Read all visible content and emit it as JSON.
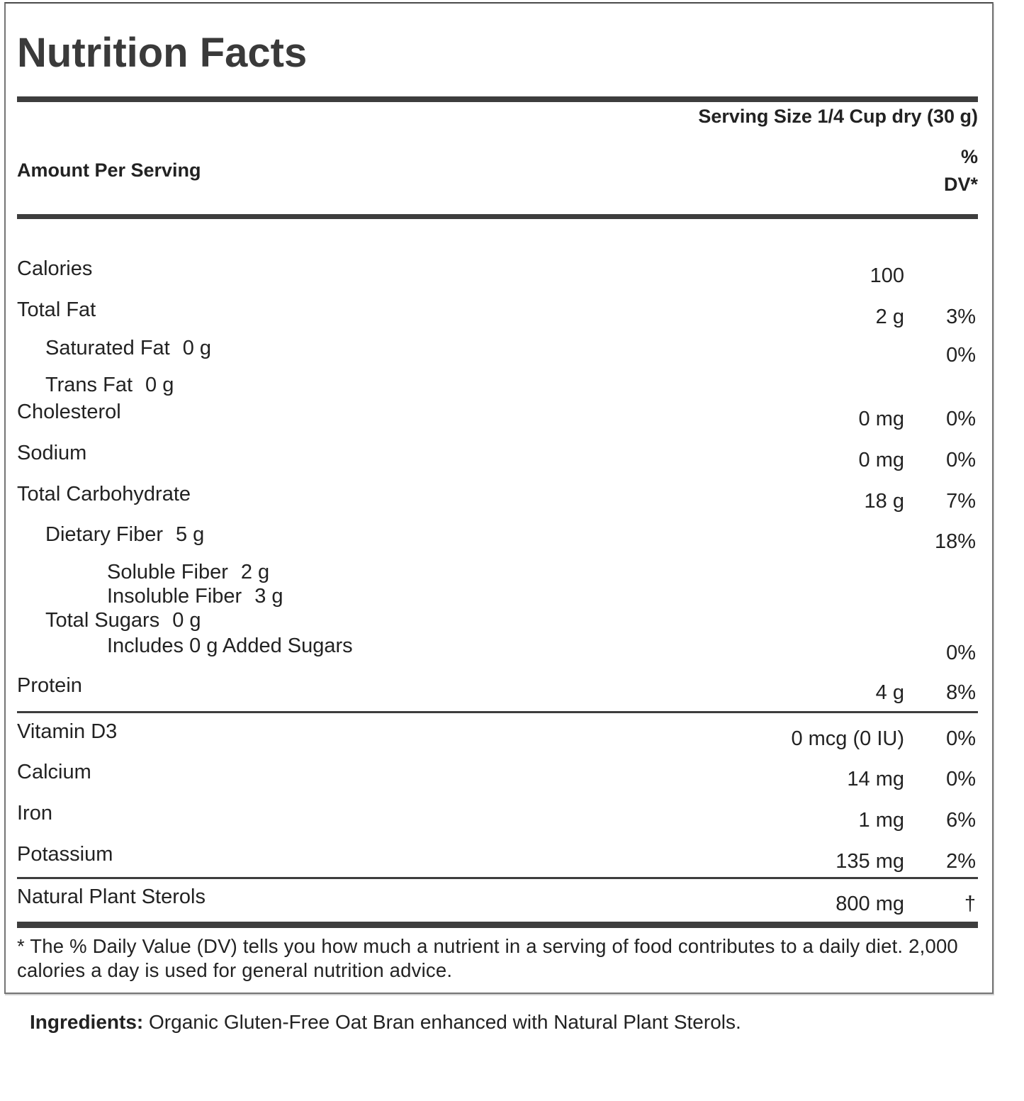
{
  "label": {
    "title": "Nutrition Facts",
    "serving_size": "Serving Size 1/4 Cup dry (30 g)",
    "amount_per_serving": "Amount Per Serving",
    "dv_header_line1": "%",
    "dv_header_line2": "DV*",
    "rows": [
      {
        "name": "Calories",
        "amount": "100",
        "dv": "",
        "indent": 0
      },
      {
        "name": "Total Fat",
        "amount": "2 g",
        "dv": "3%",
        "indent": 0
      },
      {
        "name": "Saturated Fat",
        "inline_amount": "0 g",
        "dv": "0%",
        "indent": 1
      },
      {
        "name": "Trans Fat",
        "inline_amount": "0 g",
        "dv": "",
        "indent": 1
      },
      {
        "name": "Cholesterol",
        "amount": "0 mg",
        "dv": "0%",
        "indent": 0
      },
      {
        "name": "Sodium",
        "amount": "0 mg",
        "dv": "0%",
        "indent": 0
      },
      {
        "name": "Total Carbohydrate",
        "amount": "18 g",
        "dv": "7%",
        "indent": 0
      },
      {
        "name": "Dietary Fiber",
        "inline_amount": "5 g",
        "dv": "18%",
        "indent": 1
      },
      {
        "name": "Soluble Fiber",
        "inline_amount": "2 g",
        "dv": "",
        "indent": 2
      },
      {
        "name": "Insoluble Fiber",
        "inline_amount": "3 g",
        "dv": "",
        "indent": 2
      },
      {
        "name": "Total Sugars",
        "inline_amount": "0 g",
        "dv": "",
        "indent": 1
      },
      {
        "name": "Includes 0 g Added Sugars",
        "dv": "0%",
        "indent": 2
      },
      {
        "name": "Protein",
        "amount": "4 g",
        "dv": "8%",
        "indent": 0
      },
      {
        "name": "Vitamin D3",
        "amount": "0 mcg (0 IU)",
        "dv": "0%",
        "indent": 0
      },
      {
        "name": "Calcium",
        "amount": "14 mg",
        "dv": "0%",
        "indent": 0
      },
      {
        "name": "Iron",
        "amount": "1 mg",
        "dv": "6%",
        "indent": 0
      },
      {
        "name": "Potassium",
        "amount": "135 mg",
        "dv": "2%",
        "indent": 0
      },
      {
        "name": "Natural Plant Sterols",
        "amount": "800 mg",
        "dv": "†",
        "indent": 0
      }
    ],
    "footnote": "* The % Daily Value (DV) tells you how much a nutrient in a serving of food contributes to a daily diet. 2,000 calories a day is used for general nutrition advice."
  },
  "ingredients": {
    "label": "Ingredients:",
    "text": " Organic Gluten-Free Oat Bran enhanced with Natural Plant Sterols."
  },
  "colors": {
    "text": "#222222",
    "bar": "#3d3d3d",
    "border": "#757575"
  }
}
